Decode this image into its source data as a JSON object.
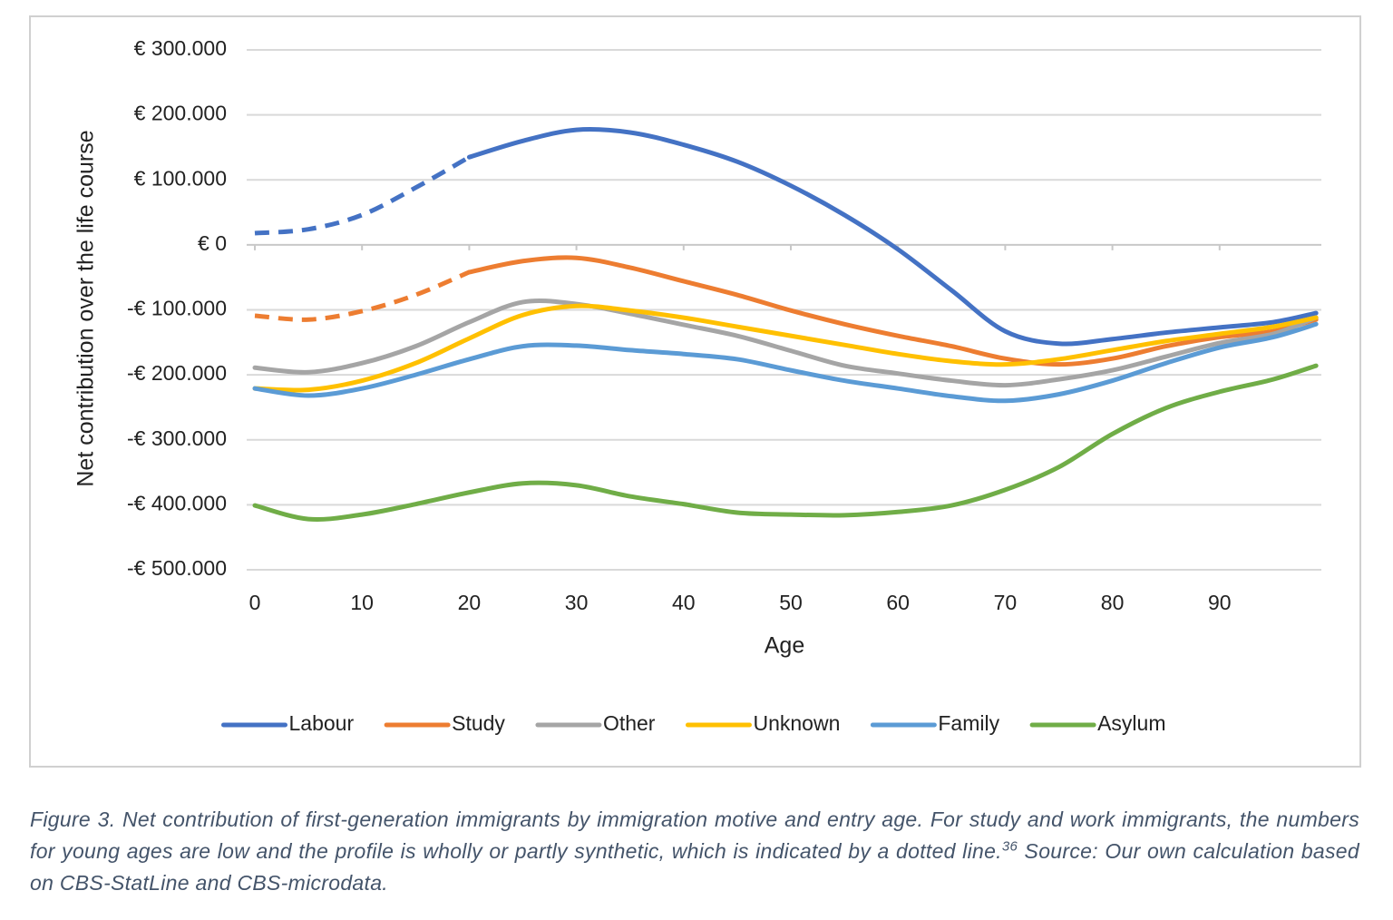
{
  "chart_data": {
    "type": "line",
    "x_label": "Age",
    "y_label": "Net contribution over the life course",
    "x": [
      0,
      5,
      10,
      15,
      20,
      25,
      30,
      35,
      40,
      45,
      50,
      55,
      60,
      65,
      70,
      75,
      80,
      85,
      90,
      95,
      99
    ],
    "xlim": [
      0,
      100
    ],
    "xticks": [
      0,
      10,
      20,
      30,
      40,
      50,
      60,
      70,
      80,
      90
    ],
    "ylim": [
      -500000,
      300000
    ],
    "yticks": [
      {
        "value": -500000,
        "label": "-€ 500.000"
      },
      {
        "value": -400000,
        "label": "-€ 400.000"
      },
      {
        "value": -300000,
        "label": "-€ 300.000"
      },
      {
        "value": -200000,
        "label": "-€ 200.000"
      },
      {
        "value": -100000,
        "label": "-€ 100.000"
      },
      {
        "value": 0,
        "label": "€ 0"
      },
      {
        "value": 100000,
        "label": "€ 100.000"
      },
      {
        "value": 200000,
        "label": "€ 200.000"
      },
      {
        "value": 300000,
        "label": "€ 300.000"
      }
    ],
    "grid": true,
    "legend": "bottom",
    "series": [
      {
        "name": "Labour",
        "color": "#4472c4",
        "dashed_until": 20,
        "values": [
          18000,
          24000,
          46000,
          88000,
          135000,
          160000,
          177000,
          173000,
          154000,
          128000,
          91000,
          46000,
          -7000,
          -70000,
          -133000,
          -152000,
          -145000,
          -135000,
          -127000,
          -119000,
          -105000
        ]
      },
      {
        "name": "Study",
        "color": "#ed7d31",
        "dashed_until": 20,
        "values": [
          -109000,
          -115000,
          -102000,
          -77000,
          -42000,
          -25000,
          -20000,
          -35000,
          -56000,
          -77000,
          -101000,
          -122000,
          -140000,
          -156000,
          -175000,
          -184000,
          -175000,
          -156000,
          -142000,
          -133000,
          -115000
        ]
      },
      {
        "name": "Other",
        "color": "#a5a5a5",
        "values": [
          -189000,
          -196000,
          -182000,
          -156000,
          -119000,
          -88000,
          -91000,
          -106000,
          -123000,
          -140000,
          -163000,
          -186000,
          -198000,
          -209000,
          -216000,
          -207000,
          -193000,
          -172000,
          -151000,
          -137000,
          -112000
        ]
      },
      {
        "name": "Unknown",
        "color": "#ffc000",
        "values": [
          -221000,
          -223000,
          -209000,
          -182000,
          -144000,
          -108000,
          -94000,
          -101000,
          -112000,
          -126000,
          -140000,
          -154000,
          -168000,
          -179000,
          -184000,
          -176000,
          -162000,
          -148000,
          -137000,
          -126000,
          -112000
        ]
      },
      {
        "name": "Family",
        "color": "#5b9bd5",
        "values": [
          -221000,
          -232000,
          -221000,
          -200000,
          -176000,
          -156000,
          -155000,
          -162000,
          -168000,
          -176000,
          -193000,
          -209000,
          -221000,
          -233000,
          -240000,
          -230000,
          -209000,
          -182000,
          -158000,
          -142000,
          -122000
        ]
      },
      {
        "name": "Asylum",
        "color": "#70ad47",
        "values": [
          -401000,
          -422000,
          -415000,
          -399000,
          -381000,
          -367000,
          -370000,
          -387000,
          -399000,
          -412000,
          -415000,
          -416000,
          -411000,
          -401000,
          -377000,
          -342000,
          -291000,
          -251000,
          -226000,
          -207000,
          -186000
        ]
      }
    ]
  },
  "caption": {
    "text": "Figure 3. Net contribution of first-generation immigrants by immigration motive and entry age. For study and work immigrants, the numbers for young ages are low and the profile is wholly or partly synthetic, which is indicated by a dotted line.",
    "note": "36",
    "source": " Source: Our own calculation based on CBS-StatLine and CBS-microdata."
  }
}
